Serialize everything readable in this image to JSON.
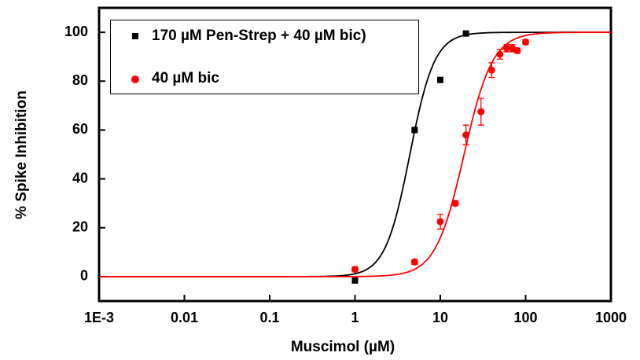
{
  "chart_data": {
    "type": "scatter",
    "xlabel": "Muscimol (µM)",
    "ylabel": "% Spike Inhibition",
    "xlog": true,
    "xlim": [
      0.001,
      1000
    ],
    "ylim": [
      -10,
      110
    ],
    "xticks": [
      {
        "value": 0.001,
        "label": "1E-3"
      },
      0.01,
      0.1,
      1,
      10,
      100,
      1000
    ],
    "yticks": [
      0,
      20,
      40,
      60,
      80,
      100
    ],
    "series": [
      {
        "name": "170 µM Pen-Strep + 40 µM bic)",
        "color": "#000000",
        "marker": "square",
        "x": [
          1,
          5,
          10,
          20
        ],
        "values": [
          -1.6,
          60,
          80.5,
          99.5
        ],
        "fit": {
          "bottom": 0,
          "top": 100,
          "ec50": 4.4,
          "hill": 3
        }
      },
      {
        "name": "40 µM bic",
        "color": "#ff0000",
        "marker": "circle",
        "x": [
          1,
          5,
          10,
          15,
          20,
          30,
          40,
          50,
          60,
          70,
          80,
          100
        ],
        "values": [
          3,
          6,
          22.5,
          30,
          58,
          67.5,
          84.5,
          91,
          93.5,
          93.5,
          92.5,
          96
        ],
        "errors": [
          1,
          1,
          3,
          1,
          4,
          5.5,
          3,
          2,
          1.5,
          1.5,
          1,
          1
        ],
        "fit": {
          "bottom": 0,
          "top": 100,
          "ec50": 19,
          "hill": 2.6
        }
      }
    ]
  }
}
